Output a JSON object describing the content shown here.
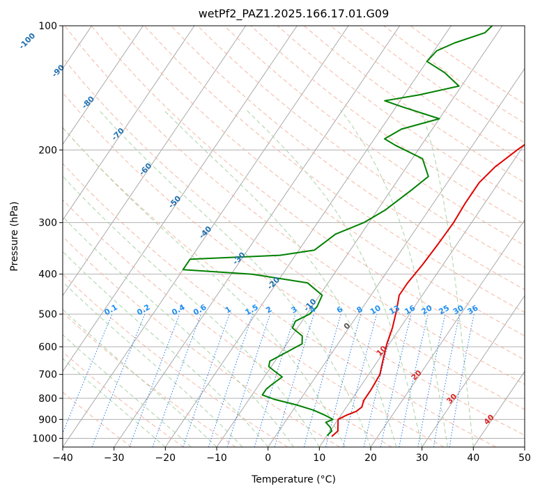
{
  "chart_data": {
    "type": "line",
    "title": "wetPf2_PAZ1.2025.166.17.01.G09",
    "xlabel": "Temperature (°C)",
    "ylabel": "Pressure (hPa)",
    "xlim": [
      -40,
      50
    ],
    "ylim": [
      1050,
      100
    ],
    "yscale": "log",
    "skew": true,
    "grid": true,
    "x_ticks": [
      "−40",
      "−30",
      "−20",
      "−10",
      "0",
      "10",
      "20",
      "30",
      "40",
      "50"
    ],
    "y_ticks": [
      "100",
      "200",
      "300",
      "400",
      "500",
      "600",
      "700",
      "800",
      "900",
      "1000"
    ],
    "isotherm_labels": [
      "-100",
      "-90",
      "-80",
      "-70",
      "-60",
      "-50",
      "-40",
      "-30",
      "-20",
      "-10",
      "0",
      "10",
      "20",
      "30",
      "40"
    ],
    "mixing_ratio_labels": [
      "0.1",
      "0.2",
      "0.4",
      "0.6",
      "1",
      "1.5",
      "2",
      "3",
      "4",
      "6",
      "8",
      "10",
      "13",
      "16",
      "20",
      "25",
      "30",
      "36"
    ],
    "series": [
      {
        "color": "#e00000",
        "points": [
          [
            11,
            990
          ],
          [
            11.5,
            960
          ],
          [
            11,
            940
          ],
          [
            10.5,
            920
          ],
          [
            10,
            900
          ],
          [
            11,
            880
          ],
          [
            12.5,
            860
          ],
          [
            13,
            840
          ],
          [
            12.5,
            810
          ],
          [
            12.5,
            760
          ],
          [
            12.2,
            700
          ],
          [
            11,
            650
          ],
          [
            9.5,
            590
          ],
          [
            8.5,
            540
          ],
          [
            7,
            490
          ],
          [
            5.5,
            450
          ],
          [
            5.5,
            420
          ],
          [
            6,
            380
          ],
          [
            6.3,
            340
          ],
          [
            6.5,
            300
          ],
          [
            6.2,
            270
          ],
          [
            6.2,
            240
          ],
          [
            7.2,
            220
          ],
          [
            9.3,
            200
          ],
          [
            11.3,
            185
          ],
          [
            12.5,
            170
          ],
          [
            14,
            155
          ],
          [
            15.3,
            145
          ],
          [
            15.8,
            135
          ],
          [
            16.6,
            128
          ],
          [
            18.5,
            120
          ],
          [
            20,
            113
          ],
          [
            22,
            105
          ],
          [
            23,
            100
          ]
        ]
      },
      {
        "color": "#008000",
        "points": [
          [
            10,
            985
          ],
          [
            10.3,
            960
          ],
          [
            9.5,
            940
          ],
          [
            8,
            915
          ],
          [
            9,
            900
          ],
          [
            7,
            880
          ],
          [
            4,
            855
          ],
          [
            0,
            830
          ],
          [
            -5,
            805
          ],
          [
            -8,
            785
          ],
          [
            -8,
            760
          ],
          [
            -7.5,
            740
          ],
          [
            -6.5,
            710
          ],
          [
            -8.5,
            690
          ],
          [
            -10.5,
            670
          ],
          [
            -11,
            650
          ],
          [
            -9,
            620
          ],
          [
            -7,
            590
          ],
          [
            -8,
            565
          ],
          [
            -11,
            540
          ],
          [
            -11.3,
            520
          ],
          [
            -9.5,
            500
          ],
          [
            -9,
            480
          ],
          [
            -9.5,
            450
          ],
          [
            -14,
            420
          ],
          [
            -26,
            400
          ],
          [
            -40,
            390
          ],
          [
            -40,
            368
          ],
          [
            -23,
            360
          ],
          [
            -17,
            350
          ],
          [
            -16,
            335
          ],
          [
            -15,
            320
          ],
          [
            -11,
            300
          ],
          [
            -8.5,
            280
          ],
          [
            -6,
            250
          ],
          [
            -4.5,
            232
          ],
          [
            -8,
            210
          ],
          [
            -15,
            195
          ],
          [
            -18,
            188
          ],
          [
            -16,
            178
          ],
          [
            -10,
            168
          ],
          [
            -19,
            157
          ],
          [
            -23,
            152
          ],
          [
            -17,
            147
          ],
          [
            -10.5,
            140
          ],
          [
            -15,
            130
          ],
          [
            -20,
            122
          ],
          [
            -19.5,
            115
          ],
          [
            -17,
            110
          ],
          [
            -12.5,
            104
          ],
          [
            -12,
            100
          ]
        ]
      }
    ]
  }
}
